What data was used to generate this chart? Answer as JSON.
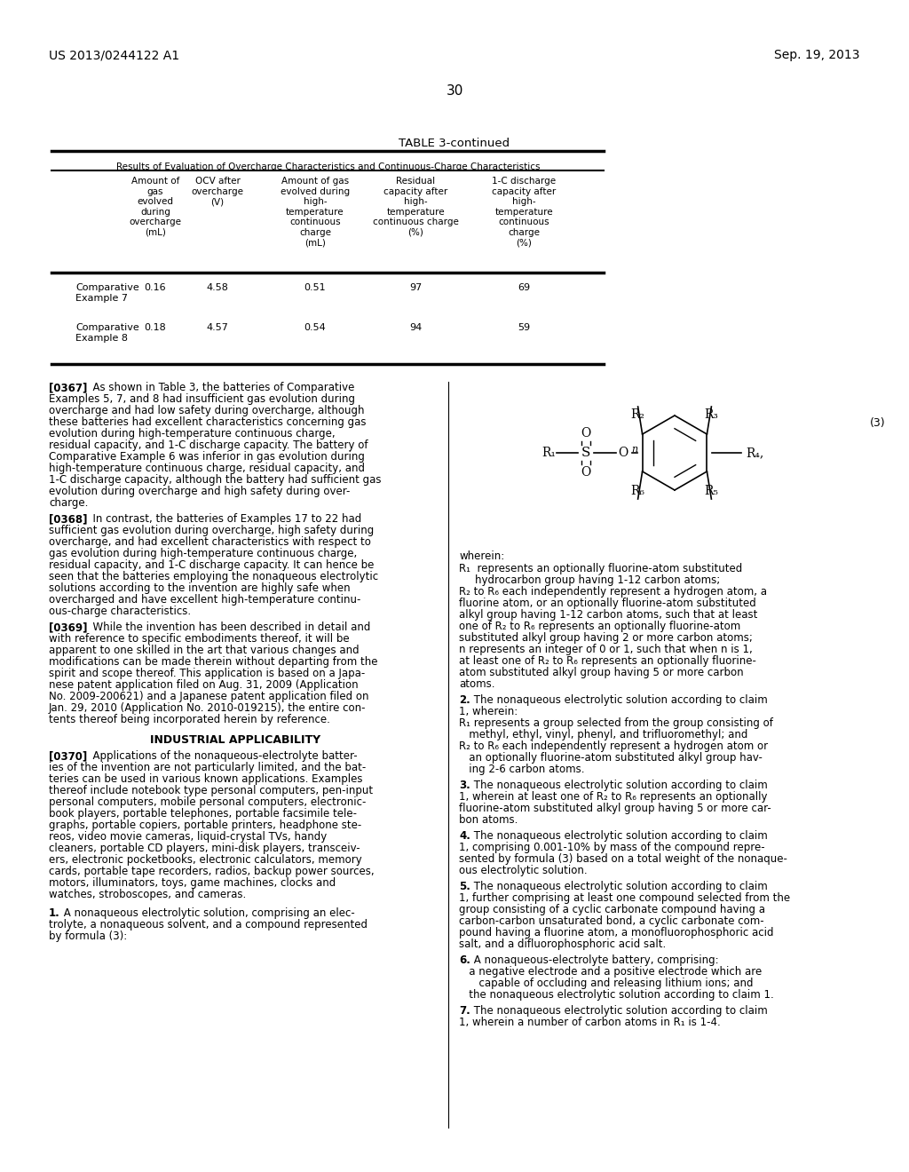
{
  "bg_color": "#ffffff",
  "header_left": "US 2013/0244122 A1",
  "header_right": "Sep. 19, 2013",
  "page_number": "30",
  "table_title": "TABLE 3-continued",
  "table_subtitle": "Results of Evaluation of Overcharge Characteristics and Continuous-Charge Characteristics",
  "col_headers": [
    "Amount of\ngas\nevolved\nduring\novercharge\n(mL)",
    "OCV after\novercharge\n(V)",
    "Amount of gas\nevolved during\nhigh-\ntemperature\ncontinuous\ncharge\n(mL)",
    "Residual\ncapacity after\nhigh-\ntemperature\ncontinuous charge\n(%)",
    "1-C discharge\ncapacity after\nhigh-\ntemperature\ncontinuous\ncharge\n(%)"
  ],
  "row_labels": [
    "Comparative\nExample 7",
    "Comparative\nExample 8"
  ],
  "table_data": [
    [
      0.16,
      4.58,
      0.51,
      97,
      69
    ],
    [
      0.18,
      4.57,
      0.54,
      94,
      59
    ]
  ],
  "para_0367": "[0367]   As shown in Table 3, the batteries of Comparative Examples 5, 7, and 8 had insufficient gas evolution during overcharge and had low safety during overcharge, although these batteries had excellent characteristics concerning gas evolution during high-temperature continuous charge, residual capacity, and 1-C discharge capacity. The battery of Comparative Example 6 was inferior in gas evolution during high-temperature continuous charge, residual capacity, and 1-C discharge capacity, although the battery had sufficient gas evolution during overcharge and high safety during overcharge.",
  "para_0368": "[0368]   In contrast, the batteries of Examples 17 to 22 had sufficient gas evolution during overcharge, high safety during overcharge, and had excellent characteristics with respect to gas evolution during high-temperature continuous charge, residual capacity, and 1-C discharge capacity. It can hence be seen that the batteries employing the nonaqueous electrolytic solutions according to the invention are highly safe when overcharged and have excellent high-temperature continuous-charge characteristics.",
  "para_0369": "[0369]   While the invention has been described in detail and with reference to specific embodiments thereof, it will be apparent to one skilled in the art that various changes and modifications can be made therein without departing from the spirit and scope thereof. This application is based on a Japanese patent application filed on Aug. 31, 2009 (Application No. 2009-200621) and a Japanese patent application filed on Jan. 29, 2010 (Application No. 2010-019215), the entire contents thereof being incorporated herein by reference.",
  "industrial_heading": "INDUSTRIAL APPLICABILITY",
  "para_0370": "[0370]   Applications of the nonaqueous-electrolyte batteries of the invention are not particularly limited, and the batteries can be used in various known applications. Examples thereof include notebook type personal computers, pen-input personal computers, mobile personal computers, electronic-book players, portable telephones, portable facsimile telegraphs, portable copiers, portable printers, headphone stereos, video movie cameras, liquid-crystal TVs, handy cleaners, portable CD players, mini-disk players, transceivers, electronic pocketbooks, electronic calculators, memory cards, portable tape recorders, radios, backup power sources, motors, illuminators, toys, game machines, clocks and watches, stroboscopes, and cameras.",
  "claim_1": "1.  A nonaqueous electrolytic solution, comprising an electrolyte, a nonaqueous solvent, and a compound represented by formula (3):",
  "formula_number": "(3)",
  "wherein_text": "wherein:",
  "R1_text": "R₁  represents an optionally fluorine-atom substituted\n      hydrocarbon group having 1-12 carbon atoms;",
  "R2_text": "R₂ to R₆ each independently represent a hydrogen atom, a fluorine atom, or an optionally fluorine-atom substituted alkyl group having 1-12 carbon atoms, such that at least one of R₂ to R₆ represents an optionally fluorine-atom substituted alkyl group having 2 or more carbon atoms;",
  "n_text": "n represents an integer of 0 or 1, such that when n is 1, at least one of R₂ to R₆ represents an optionally fluorine-atom substituted alkyl group having 5 or more carbon atoms.",
  "claim_2_header": "2.  The nonaqueous electrolytic solution according to claim 1, wherein:",
  "claim_2_R1": "R₁ represents a group selected from the group consisting of methyl, ethyl, vinyl, phenyl, and trifluoromethyl; and",
  "claim_2_R2": "R₂ to R₆ each independently represent a hydrogen atom or an optionally fluorine-atom substituted alkyl group having 2-6 carbon atoms.",
  "claim_3": "3.  The nonaqueous electrolytic solution according to claim 1, wherein at least one of R₂ to R₆ represents an optionally fluorine-atom substituted alkyl group having 5 or more carbon atoms.",
  "claim_4": "4.  The nonaqueous electrolytic solution according to claim 1, comprising 0.001-10% by mass of the compound represented by formula (3) based on a total weight of the nonaqueous electrolytic solution.",
  "claim_5": "5.  The nonaqueous electrolytic solution according to claim 1, further comprising at least one compound selected from the group consisting of a cyclic carbonate compound having a carbon-carbon unsaturated bond, a cyclic carbonate compound having a fluorine atom, a monofluorophosphoric acid salt, and a difluorophosphoric acid salt.",
  "claim_6": "6.  A nonaqueous-electrolyte battery, comprising:\n   a negative electrode and a positive electrode which are\n      capable of occluding and releasing lithium ions; and\n   the nonaqueous electrolytic solution according to claim 1.",
  "claim_7": "7.  The nonaqueous electrolytic solution according to claim 1, wherein a number of carbon atoms in R₁ is 1-4."
}
